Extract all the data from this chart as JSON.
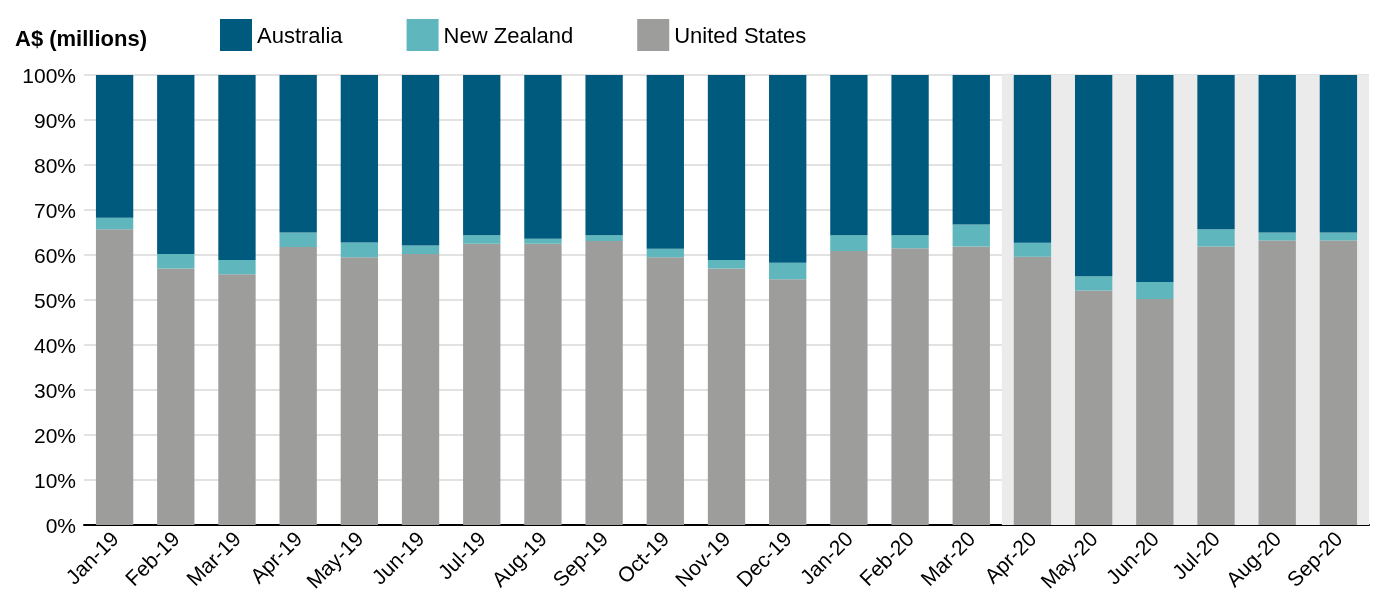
{
  "chart_data": {
    "type": "bar",
    "stacked": true,
    "ylabel": "A$ (millions)",
    "legend": "top",
    "grid": "y",
    "categories": [
      "Jan-19",
      "Feb-19",
      "Mar-19",
      "Apr-19",
      "May-19",
      "Jun-19",
      "Jul-19",
      "Aug-19",
      "Sep-19",
      "Oct-19",
      "Nov-19",
      "Dec-19",
      "Jan-20",
      "Feb-20",
      "Mar-20",
      "Apr-20",
      "May-20",
      "Jun-20",
      "Jul-20",
      "Aug-20",
      "Sep-20"
    ],
    "series": [
      {
        "name": "United States",
        "color": "#9d9d9c",
        "values": [
          65.7,
          57.0,
          55.7,
          61.8,
          59.5,
          60.2,
          62.5,
          62.5,
          63.1,
          59.5,
          57.0,
          54.6,
          60.9,
          61.5,
          61.9,
          59.6,
          52.1,
          50.2,
          61.9,
          63.2,
          63.2
        ]
      },
      {
        "name": "New Zealand",
        "color": "#5fb7bd",
        "values": [
          2.6,
          3.2,
          3.2,
          3.2,
          3.3,
          1.9,
          1.9,
          1.1,
          1.3,
          1.9,
          1.9,
          3.7,
          3.5,
          2.9,
          4.9,
          3.1,
          3.2,
          3.8,
          3.8,
          1.8,
          1.8
        ]
      },
      {
        "name": "Australia",
        "color": "#005a7e",
        "values": [
          31.7,
          39.8,
          41.1,
          35.0,
          37.2,
          37.9,
          35.6,
          36.4,
          35.6,
          38.6,
          41.1,
          41.7,
          35.6,
          35.6,
          33.2,
          37.3,
          44.7,
          46.0,
          34.3,
          35.0,
          35.0
        ]
      }
    ],
    "ylim": [
      0,
      100
    ],
    "yticks": [
      {
        "value": 0,
        "label": "0%"
      },
      {
        "value": 10,
        "label": "10%"
      },
      {
        "value": 20,
        "label": "20%"
      },
      {
        "value": 30,
        "label": "30%"
      },
      {
        "value": 40,
        "label": "40%"
      },
      {
        "value": 50,
        "label": "50%"
      },
      {
        "value": 60,
        "label": "60%"
      },
      {
        "value": 70,
        "label": "70%"
      },
      {
        "value": 80,
        "label": "80%"
      },
      {
        "value": 90,
        "label": "90%"
      },
      {
        "value": 100,
        "label": "100%"
      }
    ],
    "bands": [
      {
        "axis": "x",
        "from": "Apr-20",
        "to": "Sep-20",
        "color": "#ebebeb"
      }
    ]
  }
}
